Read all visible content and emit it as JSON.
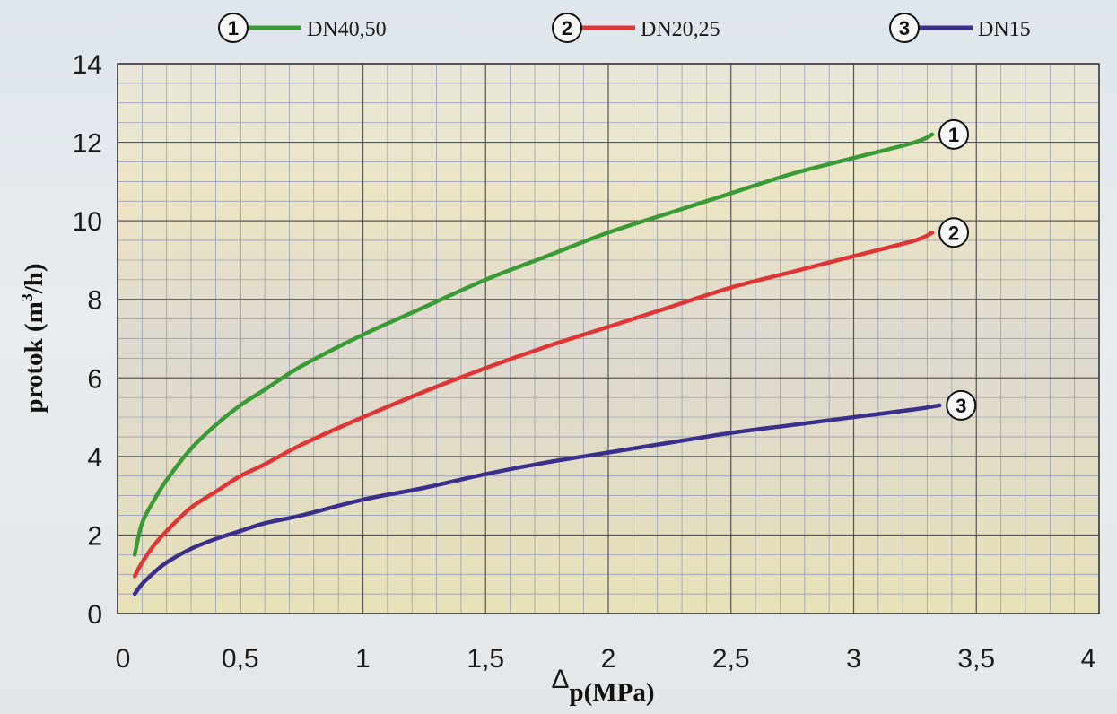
{
  "chart_data": {
    "type": "line",
    "title": "",
    "xlabel_prefix": "Δ",
    "xlabel": "p(MPa)",
    "ylabel": "protok (m",
    "ylabel_sup": "3",
    "ylabel_suffix": "/h)",
    "xlim": [
      0,
      4
    ],
    "ylim": [
      0,
      14
    ],
    "x_ticks": [
      "0",
      "0,5",
      "1",
      "1,5",
      "2",
      "2,5",
      "3",
      "3,5",
      "4"
    ],
    "y_ticks": [
      "0",
      "2",
      "4",
      "6",
      "8",
      "10",
      "12",
      "14"
    ],
    "grid": true,
    "legend_position": "top",
    "series": [
      {
        "marker": "1",
        "name": "DN40,50",
        "color": "#3a9a35",
        "x": [
          0.07,
          0.1,
          0.15,
          0.2,
          0.3,
          0.4,
          0.5,
          0.6,
          0.75,
          1.0,
          1.25,
          1.5,
          1.75,
          2.0,
          2.25,
          2.5,
          2.75,
          3.0,
          3.25,
          3.32
        ],
        "y": [
          1.5,
          2.3,
          2.9,
          3.4,
          4.2,
          4.8,
          5.3,
          5.7,
          6.3,
          7.1,
          7.8,
          8.5,
          9.1,
          9.7,
          10.2,
          10.7,
          11.2,
          11.6,
          12.0,
          12.2
        ]
      },
      {
        "marker": "2",
        "name": "DN20,25",
        "color": "#e03535",
        "x": [
          0.07,
          0.1,
          0.15,
          0.2,
          0.3,
          0.4,
          0.5,
          0.6,
          0.75,
          1.0,
          1.25,
          1.5,
          1.75,
          2.0,
          2.25,
          2.5,
          2.75,
          3.0,
          3.25,
          3.32
        ],
        "y": [
          0.95,
          1.3,
          1.75,
          2.1,
          2.7,
          3.1,
          3.5,
          3.8,
          4.3,
          5.0,
          5.65,
          6.25,
          6.8,
          7.3,
          7.8,
          8.3,
          8.7,
          9.1,
          9.5,
          9.7
        ]
      },
      {
        "marker": "3",
        "name": "DN15",
        "color": "#3b2f8c",
        "x": [
          0.07,
          0.1,
          0.15,
          0.2,
          0.3,
          0.4,
          0.5,
          0.6,
          0.75,
          1.0,
          1.25,
          1.5,
          1.75,
          2.0,
          2.25,
          2.5,
          2.75,
          3.0,
          3.25,
          3.35
        ],
        "y": [
          0.5,
          0.75,
          1.05,
          1.3,
          1.65,
          1.9,
          2.1,
          2.3,
          2.5,
          2.9,
          3.2,
          3.55,
          3.85,
          4.1,
          4.35,
          4.6,
          4.8,
          5.0,
          5.2,
          5.3
        ]
      }
    ]
  }
}
